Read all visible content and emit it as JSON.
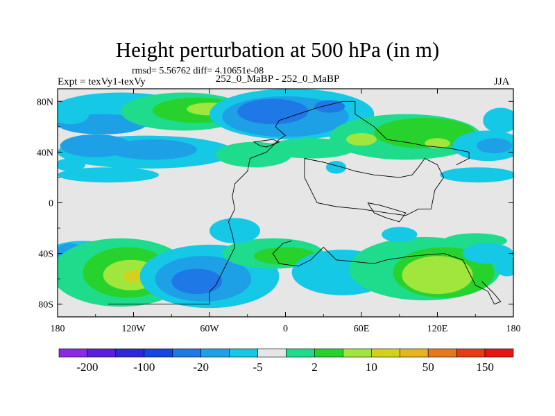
{
  "header": {
    "title": "Height perturbation at 500 hPa (in m)",
    "stats": "rmsd= 5.56762 diff= 4.10651e-08",
    "left_label": "Expt = texVy1-texVy",
    "center_label": "252_0_MaBP - 252_0_MaBP",
    "right_label": "JJA"
  },
  "chart_data": {
    "type": "heatmap",
    "title": "Height perturbation at 500 hPa (in m)",
    "x_ticks": [
      "180",
      "120W",
      "60W",
      "0",
      "60E",
      "120E",
      "180"
    ],
    "x_tick_values": [
      -180,
      -120,
      -60,
      0,
      60,
      120,
      180
    ],
    "y_ticks": [
      "80N",
      "40N",
      "0",
      "40S",
      "80S"
    ],
    "y_tick_values": [
      80,
      40,
      0,
      -40,
      -80
    ],
    "xlim": [
      -180,
      180
    ],
    "ylim": [
      -90,
      90
    ],
    "colorbar_labels": [
      "-200",
      "-100",
      "-20",
      "-5",
      "2",
      "10",
      "50",
      "150"
    ],
    "colorbar_colors": [
      "#8c28e6",
      "#5a1edc",
      "#2d28d8",
      "#1446e0",
      "#1e78e6",
      "#1ea0e6",
      "#14c8e6",
      "#e6e6e6",
      "#1edc8c",
      "#28d22d",
      "#a0e63c",
      "#d2d21e",
      "#e6b41e",
      "#e6781e",
      "#e63c14",
      "#e61414"
    ],
    "field_colors": {
      "neutral": "#e6e6e6",
      "light_blue": "#14c8e6",
      "mid_blue": "#1ea0e6",
      "blue": "#1e78e6",
      "dark_blue": "#1446e0",
      "teal": "#1edc8c",
      "green": "#28d22d",
      "light_green": "#a0e63c",
      "yellow": "#d2d21e",
      "orange": "#e6b41e"
    },
    "blobs": [
      {
        "lon": -130,
        "lat": 73,
        "rx": 55,
        "ry": 14,
        "level": "light_blue"
      },
      {
        "lon": -145,
        "lat": 62,
        "rx": 35,
        "ry": 8,
        "level": "mid_blue"
      },
      {
        "lon": -80,
        "lat": 72,
        "rx": 50,
        "ry": 15,
        "level": "teal"
      },
      {
        "lon": -70,
        "lat": 73,
        "rx": 35,
        "ry": 10,
        "level": "green"
      },
      {
        "lon": -60,
        "lat": 74,
        "rx": 18,
        "ry": 5,
        "level": "light_green"
      },
      {
        "lon": -110,
        "lat": 40,
        "rx": 70,
        "ry": 13,
        "level": "light_blue"
      },
      {
        "lon": -150,
        "lat": 45,
        "rx": 28,
        "ry": 9,
        "level": "mid_blue"
      },
      {
        "lon": -105,
        "lat": 42,
        "rx": 35,
        "ry": 8,
        "level": "mid_blue"
      },
      {
        "lon": -140,
        "lat": 22,
        "rx": 40,
        "ry": 6,
        "level": "light_blue"
      },
      {
        "lon": -170,
        "lat": 70,
        "rx": 15,
        "ry": 8,
        "level": "light_blue"
      },
      {
        "lon": 5,
        "lat": 70,
        "rx": 65,
        "ry": 20,
        "level": "light_blue"
      },
      {
        "lon": 0,
        "lat": 68,
        "rx": 50,
        "ry": 16,
        "level": "mid_blue"
      },
      {
        "lon": -10,
        "lat": 72,
        "rx": 28,
        "ry": 10,
        "level": "blue"
      },
      {
        "lon": 35,
        "lat": 76,
        "rx": 12,
        "ry": 5,
        "level": "blue"
      },
      {
        "lon": -25,
        "lat": 38,
        "rx": 30,
        "ry": 10,
        "level": "teal"
      },
      {
        "lon": 20,
        "lat": 43,
        "rx": 35,
        "ry": 8,
        "level": "teal"
      },
      {
        "lon": 40,
        "lat": 28,
        "rx": 8,
        "ry": 5,
        "level": "light_blue"
      },
      {
        "lon": 95,
        "lat": 52,
        "rx": 60,
        "ry": 18,
        "level": "teal"
      },
      {
        "lon": 110,
        "lat": 55,
        "rx": 40,
        "ry": 12,
        "level": "green"
      },
      {
        "lon": 60,
        "lat": 50,
        "rx": 12,
        "ry": 5,
        "level": "light_green"
      },
      {
        "lon": 120,
        "lat": 47,
        "rx": 10,
        "ry": 4,
        "level": "light_green"
      },
      {
        "lon": 160,
        "lat": 45,
        "rx": 28,
        "ry": 12,
        "level": "light_blue"
      },
      {
        "lon": 165,
        "lat": 45,
        "rx": 14,
        "ry": 6,
        "level": "mid_blue"
      },
      {
        "lon": 152,
        "lat": 22,
        "rx": 30,
        "ry": 6,
        "level": "light_blue"
      },
      {
        "lon": -170,
        "lat": 30,
        "rx": 12,
        "ry": 5,
        "level": "light_blue"
      },
      {
        "lon": 170,
        "lat": 65,
        "rx": 14,
        "ry": 10,
        "level": "light_blue"
      },
      {
        "lon": -160,
        "lat": -42,
        "rx": 30,
        "ry": 12,
        "level": "light_blue"
      },
      {
        "lon": -170,
        "lat": -40,
        "rx": 12,
        "ry": 8,
        "level": "mid_blue"
      },
      {
        "lon": -130,
        "lat": -55,
        "rx": 55,
        "ry": 27,
        "level": "teal"
      },
      {
        "lon": -125,
        "lat": -55,
        "rx": 35,
        "ry": 20,
        "level": "green"
      },
      {
        "lon": -122,
        "lat": -57,
        "rx": 22,
        "ry": 12,
        "level": "light_green"
      },
      {
        "lon": -118,
        "lat": -58,
        "rx": 10,
        "ry": 5,
        "level": "yellow"
      },
      {
        "lon": -60,
        "lat": -58,
        "rx": 55,
        "ry": 25,
        "level": "light_blue"
      },
      {
        "lon": -65,
        "lat": -60,
        "rx": 38,
        "ry": 18,
        "level": "mid_blue"
      },
      {
        "lon": -70,
        "lat": -62,
        "rx": 20,
        "ry": 10,
        "level": "blue"
      },
      {
        "lon": -10,
        "lat": -40,
        "rx": 40,
        "ry": 12,
        "level": "teal"
      },
      {
        "lon": 0,
        "lat": -42,
        "rx": 25,
        "ry": 7,
        "level": "green"
      },
      {
        "lon": -40,
        "lat": -22,
        "rx": 20,
        "ry": 10,
        "level": "light_blue"
      },
      {
        "lon": 45,
        "lat": -55,
        "rx": 40,
        "ry": 18,
        "level": "light_blue"
      },
      {
        "lon": 110,
        "lat": -52,
        "rx": 60,
        "ry": 25,
        "level": "teal"
      },
      {
        "lon": 125,
        "lat": -55,
        "rx": 40,
        "ry": 20,
        "level": "green"
      },
      {
        "lon": 120,
        "lat": -57,
        "rx": 28,
        "ry": 15,
        "level": "light_green"
      },
      {
        "lon": 150,
        "lat": -30,
        "rx": 25,
        "ry": 6,
        "level": "teal"
      },
      {
        "lon": 160,
        "lat": -40,
        "rx": 20,
        "ry": 8,
        "level": "light_blue"
      },
      {
        "lon": 90,
        "lat": -25,
        "rx": 14,
        "ry": 6,
        "level": "light_blue"
      },
      {
        "lon": 175,
        "lat": -50,
        "rx": 10,
        "ry": 8,
        "level": "light_blue"
      }
    ],
    "mask_polylines": [
      [
        [
          -140,
          -80
        ],
        [
          -60,
          -80
        ],
        [
          -60,
          -70
        ],
        [
          -55,
          -65
        ],
        [
          -50,
          -55
        ],
        [
          -45,
          -45
        ],
        [
          -40,
          -35
        ],
        [
          -42,
          -25
        ],
        [
          -45,
          -15
        ],
        [
          -40,
          -5
        ],
        [
          -42,
          5
        ],
        [
          -40,
          15
        ],
        [
          -30,
          25
        ],
        [
          -28,
          35
        ],
        [
          -15,
          40
        ],
        [
          -10,
          45
        ],
        [
          -5,
          50
        ],
        [
          0,
          53
        ],
        [
          -8,
          60
        ],
        [
          -5,
          65
        ],
        [
          10,
          70
        ],
        [
          25,
          75
        ],
        [
          45,
          80
        ],
        [
          55,
          80
        ],
        [
          55,
          70
        ],
        [
          70,
          60
        ],
        [
          80,
          50
        ],
        [
          100,
          47
        ],
        [
          110,
          45
        ],
        [
          130,
          43
        ],
        [
          145,
          40
        ],
        [
          145,
          35
        ],
        [
          135,
          30
        ]
      ],
      [
        [
          -20,
          45
        ],
        [
          -25,
          48
        ],
        [
          -10,
          50
        ],
        [
          -5,
          48
        ],
        [
          -15,
          44
        ],
        [
          -20,
          45
        ]
      ],
      [
        [
          15,
          35
        ],
        [
          30,
          32
        ],
        [
          45,
          28
        ],
        [
          55,
          25
        ],
        [
          70,
          22
        ],
        [
          90,
          20
        ],
        [
          100,
          22
        ],
        [
          105,
          28
        ],
        [
          110,
          35
        ],
        [
          120,
          30
        ],
        [
          125,
          20
        ],
        [
          118,
          10
        ],
        [
          115,
          -5
        ],
        [
          105,
          -5
        ],
        [
          95,
          -10
        ],
        [
          80,
          -8
        ],
        [
          60,
          -5
        ],
        [
          40,
          -3
        ],
        [
          25,
          0
        ],
        [
          20,
          10
        ],
        [
          15,
          20
        ],
        [
          15,
          35
        ]
      ],
      [
        [
          65,
          0
        ],
        [
          75,
          -2
        ],
        [
          85,
          -5
        ],
        [
          95,
          -8
        ],
        [
          90,
          -15
        ],
        [
          80,
          -12
        ],
        [
          70,
          -8
        ],
        [
          65,
          0
        ]
      ],
      [
        [
          5,
          -30
        ],
        [
          -2,
          -32
        ],
        [
          -10,
          -40
        ],
        [
          -5,
          -48
        ],
        [
          10,
          -50
        ],
        [
          20,
          -45
        ],
        [
          25,
          -40
        ],
        [
          30,
          -35
        ],
        [
          40,
          -45
        ],
        [
          70,
          -48
        ],
        [
          80,
          -45
        ],
        [
          100,
          -42
        ],
        [
          125,
          -40
        ],
        [
          140,
          -45
        ],
        [
          145,
          -55
        ],
        [
          150,
          -65
        ],
        [
          160,
          -70
        ],
        [
          165,
          -80
        ],
        [
          170,
          -78
        ],
        [
          165,
          -72
        ],
        [
          155,
          -62
        ]
      ]
    ]
  }
}
